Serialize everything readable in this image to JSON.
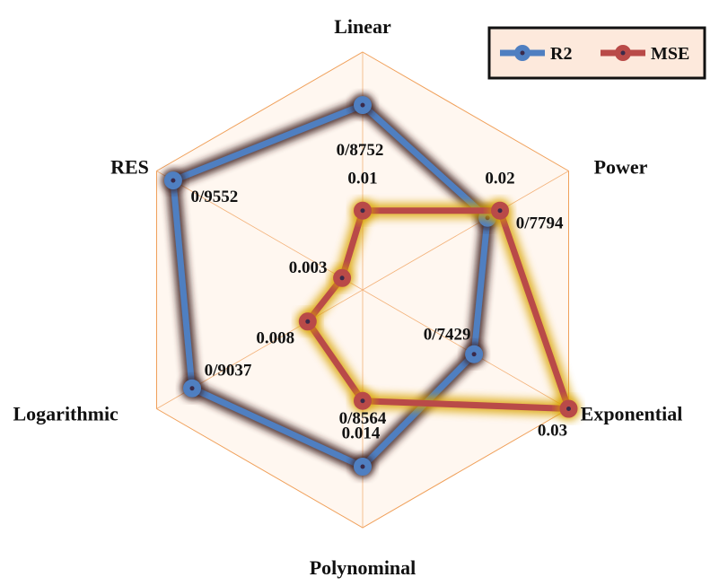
{
  "chart_data": {
    "type": "radar",
    "categories": [
      "Linear",
      "Power",
      "Exponential",
      "Polynominal",
      "Logarithmic",
      "RES"
    ],
    "grid": true,
    "grid_rings": 8,
    "legend_position": "top-right",
    "series": [
      {
        "name": "R2",
        "color": "#4f7fc1",
        "values": [
          0.8752,
          0.7794,
          0.7429,
          0.8564,
          0.9037,
          0.9552
        ],
        "labels": [
          "0/8752",
          "0/7794",
          "0/7429",
          "0/8564",
          "0/9037",
          "0/9552"
        ]
      },
      {
        "name": "MSE",
        "color": "#b94a48",
        "values": [
          0.01,
          0.02,
          0.03,
          0.014,
          0.008,
          0.003
        ],
        "labels": [
          "0.01",
          "0.02",
          "0.03",
          "0.014",
          "0.008",
          "0.003"
        ]
      }
    ]
  }
}
